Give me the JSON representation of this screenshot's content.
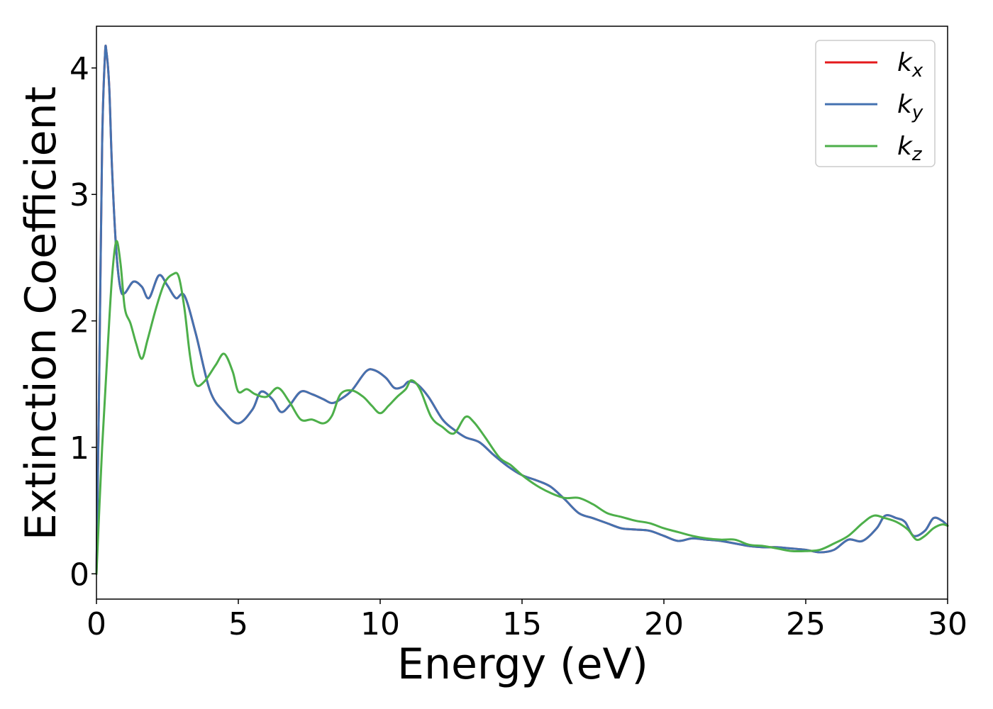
{
  "chart_data": {
    "type": "line",
    "xlabel": "Energy (eV)",
    "ylabel": "Extinction Coefficient",
    "xlim": [
      0,
      30
    ],
    "ylim": [
      -0.2,
      4.33
    ],
    "xticks": [
      0,
      5,
      10,
      15,
      20,
      25,
      30
    ],
    "xtick_labels": [
      "0",
      "5",
      "10",
      "15",
      "20",
      "25",
      "30"
    ],
    "yticks": [
      0,
      1,
      2,
      3,
      4
    ],
    "ytick_labels": [
      "0",
      "1",
      "2",
      "3",
      "4"
    ],
    "grid": false,
    "legend_position": "top-right",
    "series": [
      {
        "name": "k_x",
        "legend_main": "k",
        "legend_sub": "x",
        "color": "#e41a1c",
        "x": [
          0,
          0.1,
          0.2,
          0.3,
          0.35,
          0.45,
          0.55,
          0.7,
          0.85,
          1.0,
          1.3,
          1.6,
          1.85,
          2.2,
          2.5,
          2.8,
          3.1,
          3.5,
          4.0,
          4.5,
          5.0,
          5.5,
          5.8,
          6.2,
          6.5,
          6.8,
          7.2,
          7.6,
          8.0,
          8.3,
          8.6,
          9.0,
          9.5,
          9.8,
          10.2,
          10.5,
          10.8,
          11.0,
          11.3,
          11.7,
          12.2,
          12.6,
          13.0,
          13.5,
          14.0,
          14.5,
          15.0,
          15.5,
          16.0,
          16.5,
          17.0,
          17.5,
          18.0,
          18.5,
          19.0,
          19.5,
          20.0,
          20.5,
          21.0,
          21.5,
          22.0,
          22.5,
          23.0,
          23.5,
          24.0,
          24.5,
          25.0,
          25.5,
          26.0,
          26.5,
          27.0,
          27.5,
          27.8,
          28.2,
          28.5,
          28.8,
          29.2,
          29.5,
          29.8,
          30.0
        ],
        "y": [
          0,
          1.6,
          3.4,
          4.1,
          4.13,
          3.85,
          3.2,
          2.55,
          2.25,
          2.22,
          2.31,
          2.27,
          2.18,
          2.36,
          2.28,
          2.18,
          2.2,
          1.9,
          1.45,
          1.28,
          1.19,
          1.3,
          1.44,
          1.38,
          1.28,
          1.33,
          1.44,
          1.42,
          1.38,
          1.35,
          1.38,
          1.45,
          1.6,
          1.61,
          1.55,
          1.47,
          1.48,
          1.52,
          1.5,
          1.4,
          1.22,
          1.14,
          1.08,
          1.04,
          0.94,
          0.85,
          0.78,
          0.74,
          0.69,
          0.59,
          0.48,
          0.44,
          0.4,
          0.36,
          0.35,
          0.34,
          0.3,
          0.26,
          0.28,
          0.27,
          0.26,
          0.24,
          0.22,
          0.21,
          0.21,
          0.2,
          0.19,
          0.17,
          0.19,
          0.27,
          0.26,
          0.36,
          0.46,
          0.44,
          0.41,
          0.3,
          0.34,
          0.44,
          0.42,
          0.38
        ]
      },
      {
        "name": "k_y",
        "legend_main": "k",
        "legend_sub": "y",
        "color": "#4472b0",
        "x": [
          0,
          0.1,
          0.2,
          0.3,
          0.35,
          0.45,
          0.55,
          0.7,
          0.85,
          1.0,
          1.3,
          1.6,
          1.85,
          2.2,
          2.5,
          2.8,
          3.1,
          3.5,
          4.0,
          4.5,
          5.0,
          5.5,
          5.8,
          6.2,
          6.5,
          6.8,
          7.2,
          7.6,
          8.0,
          8.3,
          8.6,
          9.0,
          9.5,
          9.8,
          10.2,
          10.5,
          10.8,
          11.0,
          11.3,
          11.7,
          12.2,
          12.6,
          13.0,
          13.5,
          14.0,
          14.5,
          15.0,
          15.5,
          16.0,
          16.5,
          17.0,
          17.5,
          18.0,
          18.5,
          19.0,
          19.5,
          20.0,
          20.5,
          21.0,
          21.5,
          22.0,
          22.5,
          23.0,
          23.5,
          24.0,
          24.5,
          25.0,
          25.5,
          26.0,
          26.5,
          27.0,
          27.5,
          27.8,
          28.2,
          28.5,
          28.8,
          29.2,
          29.5,
          29.8,
          30.0
        ],
        "y": [
          0,
          1.6,
          3.4,
          4.1,
          4.13,
          3.85,
          3.2,
          2.55,
          2.25,
          2.22,
          2.31,
          2.27,
          2.18,
          2.36,
          2.28,
          2.18,
          2.2,
          1.9,
          1.45,
          1.28,
          1.19,
          1.3,
          1.44,
          1.38,
          1.28,
          1.33,
          1.44,
          1.42,
          1.38,
          1.35,
          1.38,
          1.45,
          1.6,
          1.61,
          1.55,
          1.47,
          1.48,
          1.52,
          1.5,
          1.4,
          1.22,
          1.14,
          1.08,
          1.04,
          0.94,
          0.85,
          0.78,
          0.74,
          0.69,
          0.59,
          0.48,
          0.44,
          0.4,
          0.36,
          0.35,
          0.34,
          0.3,
          0.26,
          0.28,
          0.27,
          0.26,
          0.24,
          0.22,
          0.21,
          0.21,
          0.2,
          0.19,
          0.17,
          0.19,
          0.27,
          0.26,
          0.36,
          0.46,
          0.44,
          0.41,
          0.3,
          0.34,
          0.44,
          0.42,
          0.38
        ]
      },
      {
        "name": "k_z",
        "legend_main": "k",
        "legend_sub": "z",
        "color": "#4daf4a",
        "x": [
          0,
          0.2,
          0.4,
          0.55,
          0.7,
          0.85,
          1.0,
          1.2,
          1.4,
          1.6,
          1.8,
          2.1,
          2.4,
          2.7,
          2.9,
          3.1,
          3.3,
          3.5,
          3.8,
          4.2,
          4.5,
          4.8,
          5.0,
          5.3,
          5.6,
          6.0,
          6.4,
          6.8,
          7.2,
          7.6,
          8.0,
          8.3,
          8.6,
          9.0,
          9.4,
          9.7,
          10.0,
          10.3,
          10.6,
          10.9,
          11.1,
          11.4,
          11.8,
          12.2,
          12.6,
          13.0,
          13.3,
          13.7,
          14.2,
          14.6,
          15.0,
          15.5,
          16.0,
          16.5,
          17.0,
          17.5,
          18.0,
          18.5,
          19.0,
          19.5,
          20.0,
          20.5,
          21.0,
          21.5,
          22.0,
          22.5,
          23.0,
          23.5,
          24.0,
          24.5,
          25.0,
          25.5,
          26.0,
          26.5,
          27.0,
          27.4,
          27.8,
          28.2,
          28.6,
          28.9,
          29.2,
          29.5,
          29.8,
          30.0
        ],
        "y": [
          0,
          1.0,
          1.8,
          2.35,
          2.63,
          2.45,
          2.1,
          1.98,
          1.82,
          1.7,
          1.85,
          2.1,
          2.3,
          2.37,
          2.35,
          2.1,
          1.72,
          1.5,
          1.52,
          1.65,
          1.74,
          1.6,
          1.44,
          1.46,
          1.42,
          1.4,
          1.47,
          1.36,
          1.22,
          1.22,
          1.19,
          1.25,
          1.42,
          1.45,
          1.4,
          1.33,
          1.27,
          1.33,
          1.4,
          1.46,
          1.53,
          1.46,
          1.24,
          1.16,
          1.11,
          1.24,
          1.2,
          1.08,
          0.92,
          0.86,
          0.78,
          0.7,
          0.64,
          0.6,
          0.6,
          0.55,
          0.48,
          0.45,
          0.42,
          0.4,
          0.36,
          0.33,
          0.3,
          0.28,
          0.27,
          0.27,
          0.23,
          0.22,
          0.2,
          0.18,
          0.18,
          0.19,
          0.24,
          0.3,
          0.4,
          0.46,
          0.44,
          0.41,
          0.35,
          0.27,
          0.3,
          0.36,
          0.39,
          0.38
        ]
      }
    ]
  }
}
